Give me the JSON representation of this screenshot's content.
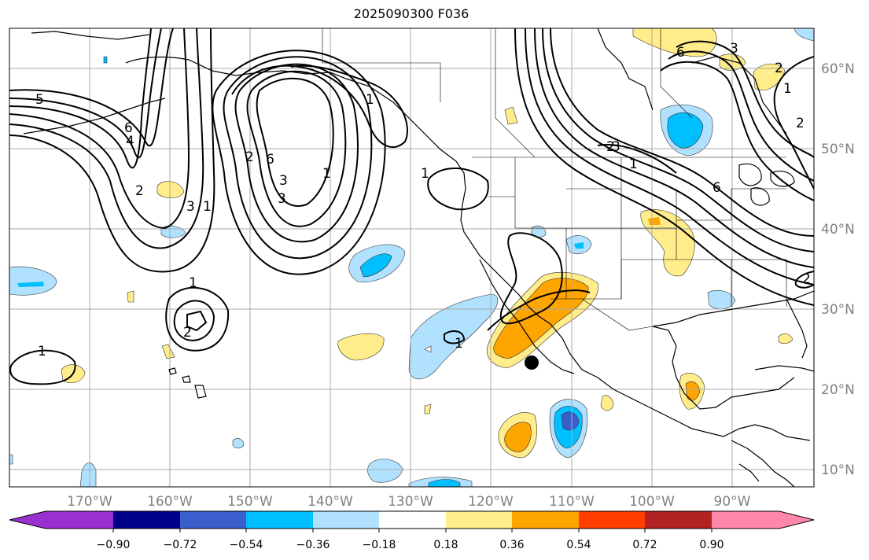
{
  "title": "2025090300 F036",
  "lat_labels": [
    "60°N",
    "50°N",
    "40°N",
    "30°N",
    "20°N",
    "10°N"
  ],
  "lon_labels": [
    "170°W",
    "160°W",
    "150°W",
    "140°W",
    "130°W",
    "120°W",
    "110°W",
    "100°W",
    "90°W"
  ],
  "colorbar": {
    "tick_labels": [
      "−0.90",
      "−0.72",
      "−0.54",
      "−0.36",
      "−0.18",
      "0.18",
      "0.36",
      "0.54",
      "0.72",
      "0.90"
    ],
    "colors": [
      "#9b30d0",
      "#00008b",
      "#3a5fcd",
      "#00bfff",
      "#b0e2ff",
      "#ffffff",
      "#ffec8b",
      "#ffa500",
      "#ff3e00",
      "#b22222",
      "#ff88aa"
    ]
  },
  "contour_labels": [
    "5",
    "6",
    "4",
    "2",
    "3",
    "1",
    "2",
    "6",
    "3",
    "1",
    "1",
    "3",
    "2",
    "1",
    "1",
    "1",
    "1",
    "3",
    "2",
    "3",
    "6",
    "1",
    "6",
    "2",
    "2",
    "1",
    "2"
  ],
  "shading_colors": {
    "light_blue": "#b0e2ff",
    "blue": "#00bfff",
    "dark_blue": "#3a5fcd",
    "yellow": "#ffec8b",
    "orange": "#ffa500"
  }
}
